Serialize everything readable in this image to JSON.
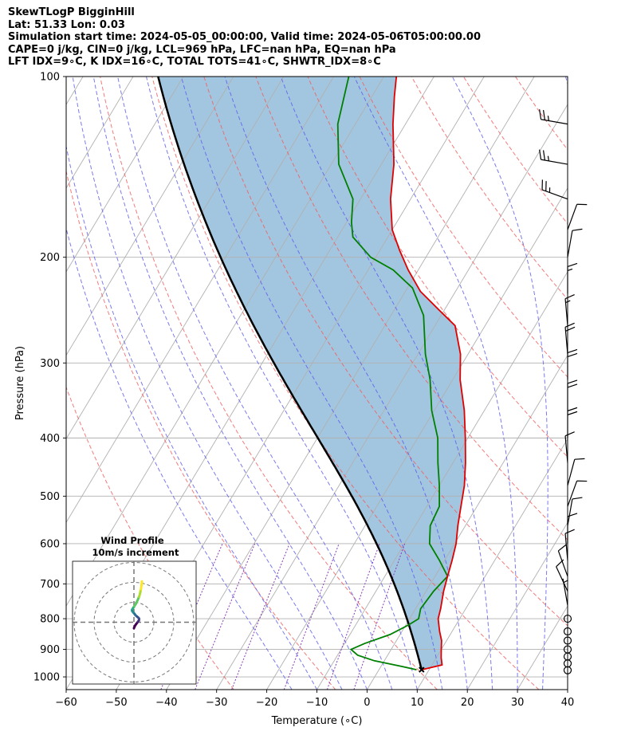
{
  "header": {
    "line1": "SkewTLogP BigginHill",
    "line2": "Lat: 51.33   Lon: 0.03",
    "line3": "Simulation start time: 2024-05-05_00:00:00, Valid time: 2024-05-06T05:00:00.00",
    "line4": "CAPE=0 j/kg, CIN=0 j/kg, LCL=969 hPa, LFC=nan hPa, EQ=nan hPa",
    "line5": "LFT IDX=9∘C, K IDX=16∘C, TOTAL TOTS=41∘C, SHWTR_IDX=8∘C"
  },
  "chart_data": {
    "type": "line",
    "subtype": "skew-t-log-p",
    "xlabel": "Temperature (∘C)",
    "ylabel": "Pressure (hPa)",
    "xlim": [
      -60,
      40
    ],
    "ylim": [
      1050,
      100
    ],
    "yscale": "log",
    "xticks": [
      -60,
      -50,
      -40,
      -30,
      -20,
      -10,
      0,
      10,
      20,
      30,
      40
    ],
    "xtick_labels": [
      "−60",
      "−50",
      "−40",
      "−30",
      "−20",
      "−10",
      "0",
      "10",
      "20",
      "30",
      "40"
    ],
    "yticks": [
      1000,
      900,
      800,
      700,
      600,
      500,
      400,
      300,
      200,
      100
    ],
    "grid": true,
    "colors": {
      "temperature": "#e00000",
      "dewpoint": "#008000",
      "parcel": "#000000",
      "cin_cape_fill": "#a3c6e0",
      "dry_adiabats": "#f25a5a",
      "moist_adiabats": "#5a5aee",
      "mixing_ratio": "#8a3ab9",
      "isotherms": "#b0b0b0"
    },
    "temperature": {
      "p": [
        973,
        955,
        930,
        900,
        870,
        840,
        800,
        770,
        720,
        680,
        640,
        600,
        560,
        520,
        480,
        440,
        400,
        360,
        320,
        290,
        260,
        245,
        228,
        210,
        195,
        180,
        160,
        140,
        120,
        108,
        100
      ],
      "t": [
        8.5,
        12,
        11,
        10,
        9,
        7.5,
        5.7,
        5.0,
        3.5,
        2.5,
        1.5,
        0.3,
        -1.5,
        -3.2,
        -5.0,
        -7.5,
        -10.5,
        -14.0,
        -18.5,
        -21.5,
        -26.0,
        -31.0,
        -37.0,
        -42.0,
        -46.0,
        -50.0,
        -54.0,
        -57.5,
        -62.5,
        -65.5,
        -67.5
      ]
    },
    "dewpoint": {
      "p": [
        973,
        960,
        940,
        920,
        900,
        880,
        850,
        820,
        800,
        770,
        720,
        680,
        640,
        600,
        560,
        520,
        480,
        440,
        400,
        360,
        320,
        290,
        250,
        225,
        210,
        200,
        185,
        175,
        160,
        140,
        120,
        100
      ],
      "td": [
        7.5,
        4.0,
        -2.0,
        -6.0,
        -8.0,
        -6.0,
        -2.0,
        0.5,
        1.8,
        1.0,
        1.5,
        2.5,
        -1.0,
        -5.0,
        -7.0,
        -7.5,
        -10.0,
        -13.0,
        -16.0,
        -20.5,
        -24.5,
        -28.5,
        -33.5,
        -39.0,
        -45.0,
        -51.0,
        -57.0,
        -59.0,
        -61.5,
        -68.5,
        -73.5,
        -77.0
      ]
    },
    "parcel_surface": {
      "p": 973,
      "t": 8.5
    },
    "wind_barbs": {
      "p": [
        975,
        950,
        925,
        900,
        870,
        840,
        800,
        760,
        720,
        680,
        640,
        600,
        560,
        520,
        480,
        440,
        400,
        360,
        320,
        290,
        260,
        230,
        200,
        180,
        160,
        140,
        120
      ],
      "speed_kt": [
        0,
        0,
        0,
        0,
        0,
        0,
        0,
        5,
        10,
        10,
        10,
        10,
        10,
        10,
        10,
        10,
        20,
        20,
        20,
        20,
        15,
        15,
        10,
        10,
        25,
        25,
        25
      ],
      "dir_deg": [
        0,
        0,
        0,
        0,
        0,
        0,
        0,
        350,
        335,
        340,
        355,
        0,
        10,
        20,
        15,
        355,
        0,
        0,
        0,
        355,
        355,
        0,
        10,
        20,
        290,
        280,
        280
      ]
    },
    "wind_profile_inset": {
      "title": "Wind Profile",
      "subtitle": "10m/s increment",
      "ring_increment_ms": 10,
      "u": [
        0.0,
        0.5,
        1.2,
        2.0,
        2.5,
        2.6,
        2.2,
        1.6,
        0.8,
        0.3,
        -0.4,
        -0.9,
        -0.9,
        -0.6,
        -0.3,
        0.2,
        1.0,
        1.8,
        2.6,
        3.1,
        3.5,
        3.8,
        4.0
      ],
      "v": [
        -3.0,
        -1.8,
        -0.8,
        0.2,
        1.0,
        1.8,
        2.3,
        2.8,
        3.5,
        4.2,
        5.0,
        5.7,
        6.3,
        6.8,
        7.3,
        8.0,
        9.3,
        11.0,
        12.8,
        14.6,
        16.5,
        18.6,
        20.5
      ]
    }
  }
}
